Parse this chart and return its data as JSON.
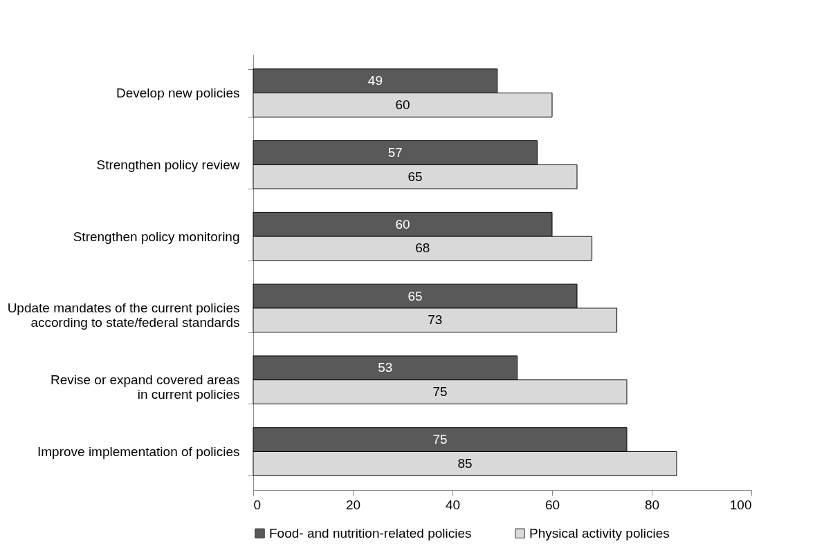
{
  "chart_data": {
    "type": "bar",
    "orientation": "horizontal",
    "categories": [
      "Develop new policies",
      "Strengthen policy review",
      "Strengthen policy monitoring",
      "Update mandates of the current policies\naccording to state/federal standards",
      "Revise or expand covered areas\nin current policies",
      "Improve implementation of policies"
    ],
    "series": [
      {
        "name": "Food- and nutrition-related policies",
        "color": "#595959",
        "values": [
          49,
          57,
          60,
          65,
          53,
          75
        ]
      },
      {
        "name": "Physical activity policies",
        "color": "#d9d9d9",
        "values": [
          60,
          65,
          68,
          73,
          75,
          85
        ]
      }
    ],
    "xlim": [
      0,
      100
    ],
    "xticks": [
      0,
      20,
      40,
      60,
      80,
      100
    ],
    "data_labels": true,
    "grid": false,
    "legend": "bottom"
  }
}
